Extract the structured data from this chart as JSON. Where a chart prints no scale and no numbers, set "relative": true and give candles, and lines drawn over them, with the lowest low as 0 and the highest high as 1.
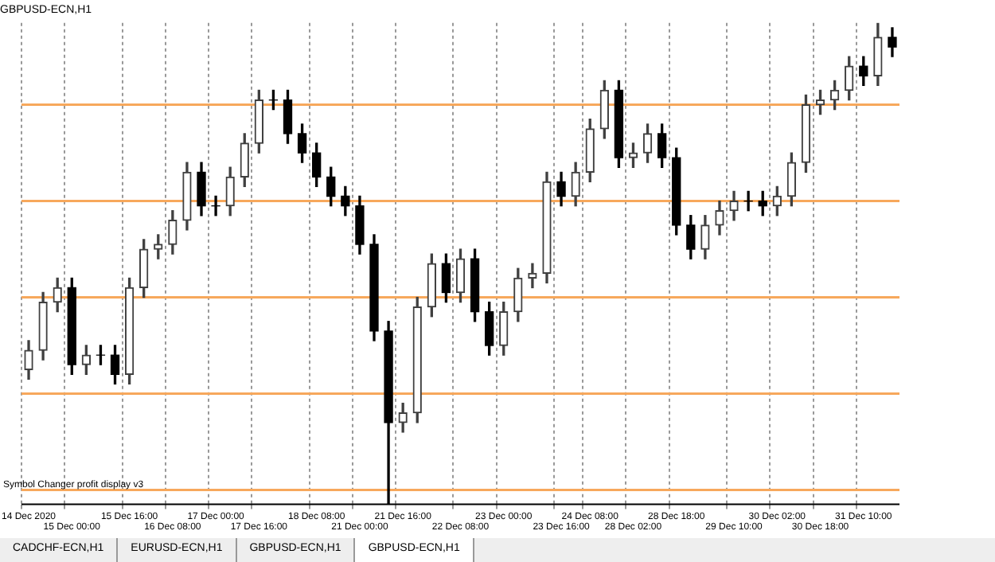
{
  "chart_data": {
    "type": "candlestick",
    "title": "GBPUSD-ECN,H1",
    "relative": true,
    "grid": "x",
    "legend": false,
    "categories": [
      "14 Dec 2020",
      null,
      null,
      "15 Dec 00:00",
      null,
      null,
      null,
      "15 Dec 16:00",
      null,
      null,
      "16 Dec 08:00",
      null,
      null,
      "17 Dec 00:00",
      null,
      null,
      "17 Dec 16:00",
      null,
      null,
      null,
      "18 Dec 08:00",
      null,
      null,
      "21 Dec 00:00",
      null,
      null,
      "21 Dec 16:00",
      null,
      null,
      null,
      "22 Dec 08:00",
      null,
      null,
      "23 Dec 00:00",
      null,
      null,
      null,
      "23 Dec 16:00",
      null,
      "24 Dec 08:00",
      null,
      null,
      "28 Dec 02:00",
      null,
      null,
      "28 Dec 18:00",
      null,
      null,
      null,
      "29 Dec 10:00",
      null,
      null,
      "30 Dec 02:00",
      null,
      null,
      "30 Dec 18:00",
      null,
      null,
      "31 Dec 10:00",
      null,
      null
    ],
    "ohlc": [
      [
        0.28,
        0.34,
        0.26,
        0.32
      ],
      [
        0.32,
        0.44,
        0.3,
        0.42
      ],
      [
        0.42,
        0.47,
        0.4,
        0.45
      ],
      [
        0.45,
        0.47,
        0.27,
        0.29
      ],
      [
        0.29,
        0.33,
        0.27,
        0.31
      ],
      [
        0.31,
        0.33,
        0.29,
        0.31
      ],
      [
        0.31,
        0.33,
        0.25,
        0.27
      ],
      [
        0.27,
        0.47,
        0.25,
        0.45
      ],
      [
        0.45,
        0.55,
        0.43,
        0.53
      ],
      [
        0.53,
        0.56,
        0.51,
        0.54
      ],
      [
        0.54,
        0.61,
        0.52,
        0.59
      ],
      [
        0.59,
        0.71,
        0.57,
        0.69
      ],
      [
        0.69,
        0.71,
        0.6,
        0.62
      ],
      [
        0.62,
        0.64,
        0.6,
        0.62
      ],
      [
        0.62,
        0.7,
        0.6,
        0.68
      ],
      [
        0.68,
        0.77,
        0.66,
        0.75
      ],
      [
        0.75,
        0.86,
        0.73,
        0.84
      ],
      [
        0.84,
        0.86,
        0.82,
        0.84
      ],
      [
        0.84,
        0.86,
        0.75,
        0.77
      ],
      [
        0.77,
        0.79,
        0.71,
        0.73
      ],
      [
        0.73,
        0.75,
        0.66,
        0.68
      ],
      [
        0.68,
        0.7,
        0.62,
        0.64
      ],
      [
        0.64,
        0.66,
        0.6,
        0.62
      ],
      [
        0.62,
        0.64,
        0.52,
        0.54
      ],
      [
        0.54,
        0.56,
        0.34,
        0.36
      ],
      [
        0.36,
        0.38,
        0,
        0.17
      ],
      [
        0.17,
        0.21,
        0.15,
        0.19
      ],
      [
        0.19,
        0.43,
        0.17,
        0.41
      ],
      [
        0.41,
        0.52,
        0.39,
        0.5
      ],
      [
        0.5,
        0.52,
        0.42,
        0.44
      ],
      [
        0.44,
        0.53,
        0.42,
        0.51
      ],
      [
        0.51,
        0.53,
        0.38,
        0.4
      ],
      [
        0.4,
        0.42,
        0.31,
        0.33
      ],
      [
        0.33,
        0.42,
        0.31,
        0.4
      ],
      [
        0.4,
        0.49,
        0.38,
        0.47
      ],
      [
        0.47,
        0.5,
        0.45,
        0.48
      ],
      [
        0.48,
        0.69,
        0.46,
        0.67
      ],
      [
        0.67,
        0.69,
        0.62,
        0.64
      ],
      [
        0.64,
        0.71,
        0.62,
        0.69
      ],
      [
        0.69,
        0.8,
        0.67,
        0.78
      ],
      [
        0.78,
        0.88,
        0.76,
        0.86
      ],
      [
        0.86,
        0.88,
        0.7,
        0.72
      ],
      [
        0.72,
        0.75,
        0.7,
        0.73
      ],
      [
        0.73,
        0.79,
        0.71,
        0.77
      ],
      [
        0.77,
        0.79,
        0.7,
        0.72
      ],
      [
        0.72,
        0.74,
        0.56,
        0.58
      ],
      [
        0.58,
        0.6,
        0.51,
        0.53
      ],
      [
        0.53,
        0.6,
        0.51,
        0.58
      ],
      [
        0.58,
        0.63,
        0.56,
        0.61
      ],
      [
        0.61,
        0.65,
        0.59,
        0.63
      ],
      [
        0.63,
        0.65,
        0.61,
        0.63
      ],
      [
        0.63,
        0.65,
        0.6,
        0.62
      ],
      [
        0.62,
        0.66,
        0.6,
        0.64
      ],
      [
        0.64,
        0.73,
        0.62,
        0.71
      ],
      [
        0.71,
        0.85,
        0.69,
        0.83
      ],
      [
        0.83,
        0.86,
        0.81,
        0.84
      ],
      [
        0.84,
        0.88,
        0.82,
        0.86
      ],
      [
        0.86,
        0.93,
        0.84,
        0.91
      ],
      [
        0.91,
        0.93,
        0.87,
        0.89
      ],
      [
        0.89,
        1,
        0.87,
        0.97
      ],
      [
        0.97,
        0.99,
        0.93,
        0.95
      ]
    ],
    "ref_lines": [
      {
        "axis": "y",
        "value": 0.83,
        "color": "#f7a85c"
      },
      {
        "axis": "y",
        "value": 0.63,
        "color": "#f7a85c"
      },
      {
        "axis": "y",
        "value": 0.43,
        "color": "#f7a85c"
      },
      {
        "axis": "y",
        "value": 0.23,
        "color": "#f7a85c"
      },
      {
        "axis": "y",
        "value": 0.03,
        "color": "#f7a85c"
      }
    ],
    "annotations": [
      "Symbol Changer profit display v3",
      "CADCHF-ECN,H1",
      "EURUSD-ECN,H1",
      "GBPUSD-ECN,H1",
      "GBPUSD-ECN,H1"
    ]
  }
}
